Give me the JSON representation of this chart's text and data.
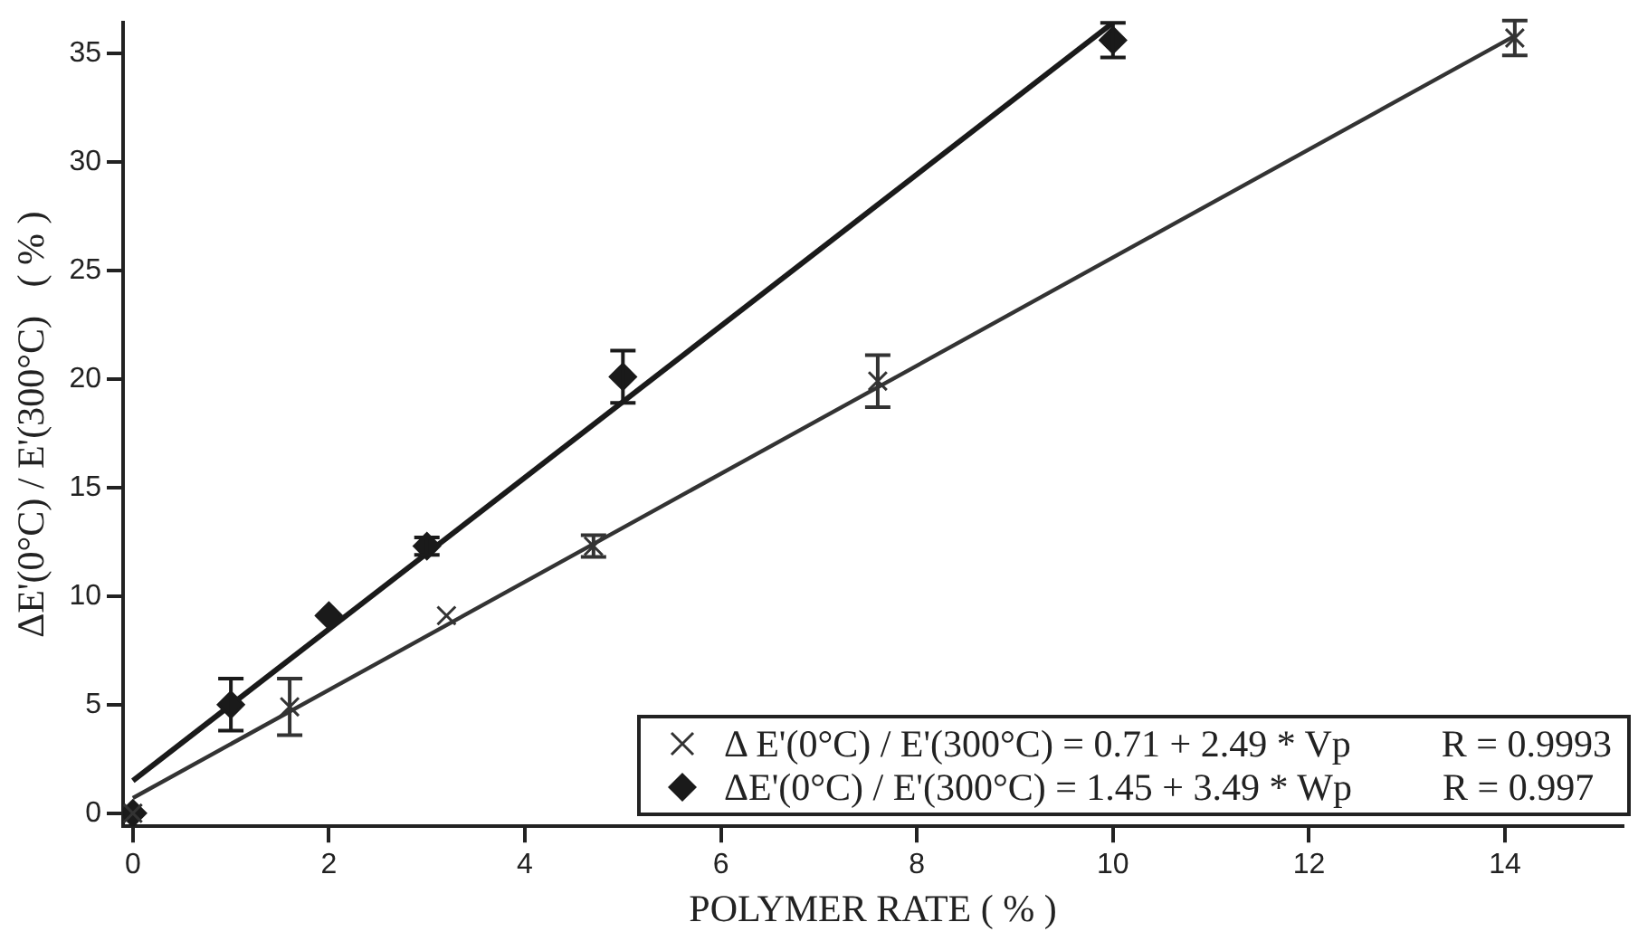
{
  "chart_data": {
    "type": "scatter",
    "xlabel": "POLYMER RATE ( % )",
    "ylabel": "ΔE'(0°C) / E'(300°C)   ( % )",
    "xlim": [
      -0.1,
      15.2
    ],
    "xticks": [
      0,
      2,
      4,
      6,
      8,
      10,
      12,
      14
    ],
    "ylim": [
      -0.6,
      36.4
    ],
    "yticks": [
      0,
      5,
      10,
      15,
      20,
      25,
      30,
      35
    ],
    "grid": false,
    "legend": "bottom right",
    "annotations": [
      "R = 0.9993",
      "R = 0.997"
    ],
    "series": [
      {
        "name": "Δ E'(0°C) / E'(300°C) = 0.71 + 2.49 * Vp",
        "type": "scatter",
        "marker": "cross",
        "color": "#333333",
        "x": [
          0,
          1.6,
          3.2,
          4.7,
          7.6,
          14.1
        ],
        "values": [
          0,
          4.9,
          9.1,
          12.3,
          19.9,
          35.7
        ],
        "errors": [
          null,
          1.3,
          null,
          0.5,
          1.2,
          0.8
        ]
      },
      {
        "name": "ΔE'(0°C) / E'(300°C) = 1.45 + 3.49 * Wp",
        "type": "scatter",
        "marker": "diamond",
        "color": "#1a1a1a",
        "x": [
          0,
          1,
          2,
          3,
          5,
          10
        ],
        "values": [
          0,
          5.0,
          9.1,
          12.3,
          20.1,
          35.6
        ],
        "errors": [
          null,
          1.2,
          null,
          0.4,
          1.2,
          0.8
        ]
      },
      {
        "type": "line",
        "color": "#333333",
        "x": [
          0,
          14.1
        ],
        "values": [
          0.7,
          35.8
        ]
      },
      {
        "type": "line",
        "color": "#1a1a1a",
        "x": [
          0,
          10
        ],
        "values": [
          1.5,
          36.4
        ]
      }
    ]
  }
}
